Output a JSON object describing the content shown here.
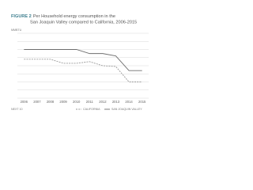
{
  "chart_data": {
    "type": "line",
    "figure_label": "FIGURE 2",
    "title": "Per Household energy consumption in the",
    "subtitle": "San Joaquin Valley compared to California, 2006-2015",
    "y_axis_label": "MMBTU",
    "source": "NEXT 10",
    "x": [
      "2006",
      "2007",
      "2008",
      "2009",
      "2010",
      "2011",
      "2012",
      "2013",
      "2014",
      "2015"
    ],
    "series": [
      {
        "name": "CALIFORNIA",
        "color": "#9a9a9a",
        "dashed": true,
        "values": [
          48,
          48,
          48,
          43,
          43,
          45,
          40,
          39,
          20,
          20
        ]
      },
      {
        "name": "SAN JOAQUIN VALLEY",
        "color": "#6e6e6e",
        "dashed": false,
        "values": [
          60,
          60,
          60,
          60,
          60,
          55,
          55,
          52,
          34,
          34
        ]
      }
    ],
    "ylim": [
      0,
      80
    ],
    "yticks": [
      0,
      10,
      20,
      30,
      40,
      50,
      60,
      70,
      80
    ],
    "grid": true
  }
}
